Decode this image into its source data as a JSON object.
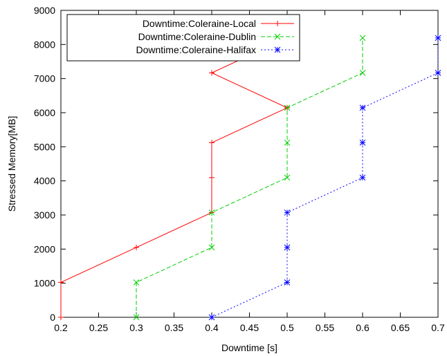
{
  "chart_data": {
    "type": "line",
    "title": "",
    "xlabel": "Downtime [s]",
    "ylabel": "Stressed Memory[MB]",
    "xlim": [
      0.2,
      0.7
    ],
    "ylim": [
      0,
      9000
    ],
    "xticks": [
      0.2,
      0.25,
      0.3,
      0.35,
      0.4,
      0.45,
      0.5,
      0.55,
      0.6,
      0.65,
      0.7
    ],
    "yticks": [
      0,
      1000,
      2000,
      3000,
      4000,
      5000,
      6000,
      7000,
      8000,
      9000
    ],
    "xtick_labels": [
      "0.2",
      "0.25",
      "0.3",
      "0.35",
      "0.4",
      "0.45",
      "0.5",
      "0.55",
      "0.6",
      "0.65",
      "0.7"
    ],
    "ytick_labels": [
      "0",
      "1000",
      "2000",
      "3000",
      "4000",
      "5000",
      "6000",
      "7000",
      "8000",
      "9000"
    ],
    "grid": false,
    "legend_position": "top-left",
    "series": [
      {
        "name": "Downtime:Coleraine-Local",
        "color": "#ff0000",
        "line_style": "solid",
        "marker": "plus",
        "points": [
          [
            0.2,
            0
          ],
          [
            0.2,
            1024
          ],
          [
            0.3,
            2048
          ],
          [
            0.4,
            3072
          ],
          [
            0.4,
            4096
          ],
          [
            0.4,
            5120
          ],
          [
            0.5,
            6144
          ],
          [
            0.4,
            7168
          ],
          [
            0.5,
            8192
          ]
        ]
      },
      {
        "name": "Downtime:Coleraine-Dublin",
        "color": "#00cc00",
        "line_style": "dashed",
        "marker": "cross",
        "points": [
          [
            0.3,
            0
          ],
          [
            0.3,
            1024
          ],
          [
            0.4,
            2048
          ],
          [
            0.4,
            3072
          ],
          [
            0.5,
            4096
          ],
          [
            0.5,
            5120
          ],
          [
            0.5,
            6144
          ],
          [
            0.6,
            7168
          ],
          [
            0.6,
            8192
          ]
        ]
      },
      {
        "name": "Downtime:Coleraine-Halifax",
        "color": "#0000ff",
        "line_style": "dotted",
        "marker": "star",
        "points": [
          [
            0.4,
            0
          ],
          [
            0.5,
            1024
          ],
          [
            0.5,
            2048
          ],
          [
            0.5,
            3072
          ],
          [
            0.6,
            4096
          ],
          [
            0.6,
            5120
          ],
          [
            0.6,
            6144
          ],
          [
            0.7,
            7168
          ],
          [
            0.7,
            8192
          ]
        ]
      }
    ]
  }
}
